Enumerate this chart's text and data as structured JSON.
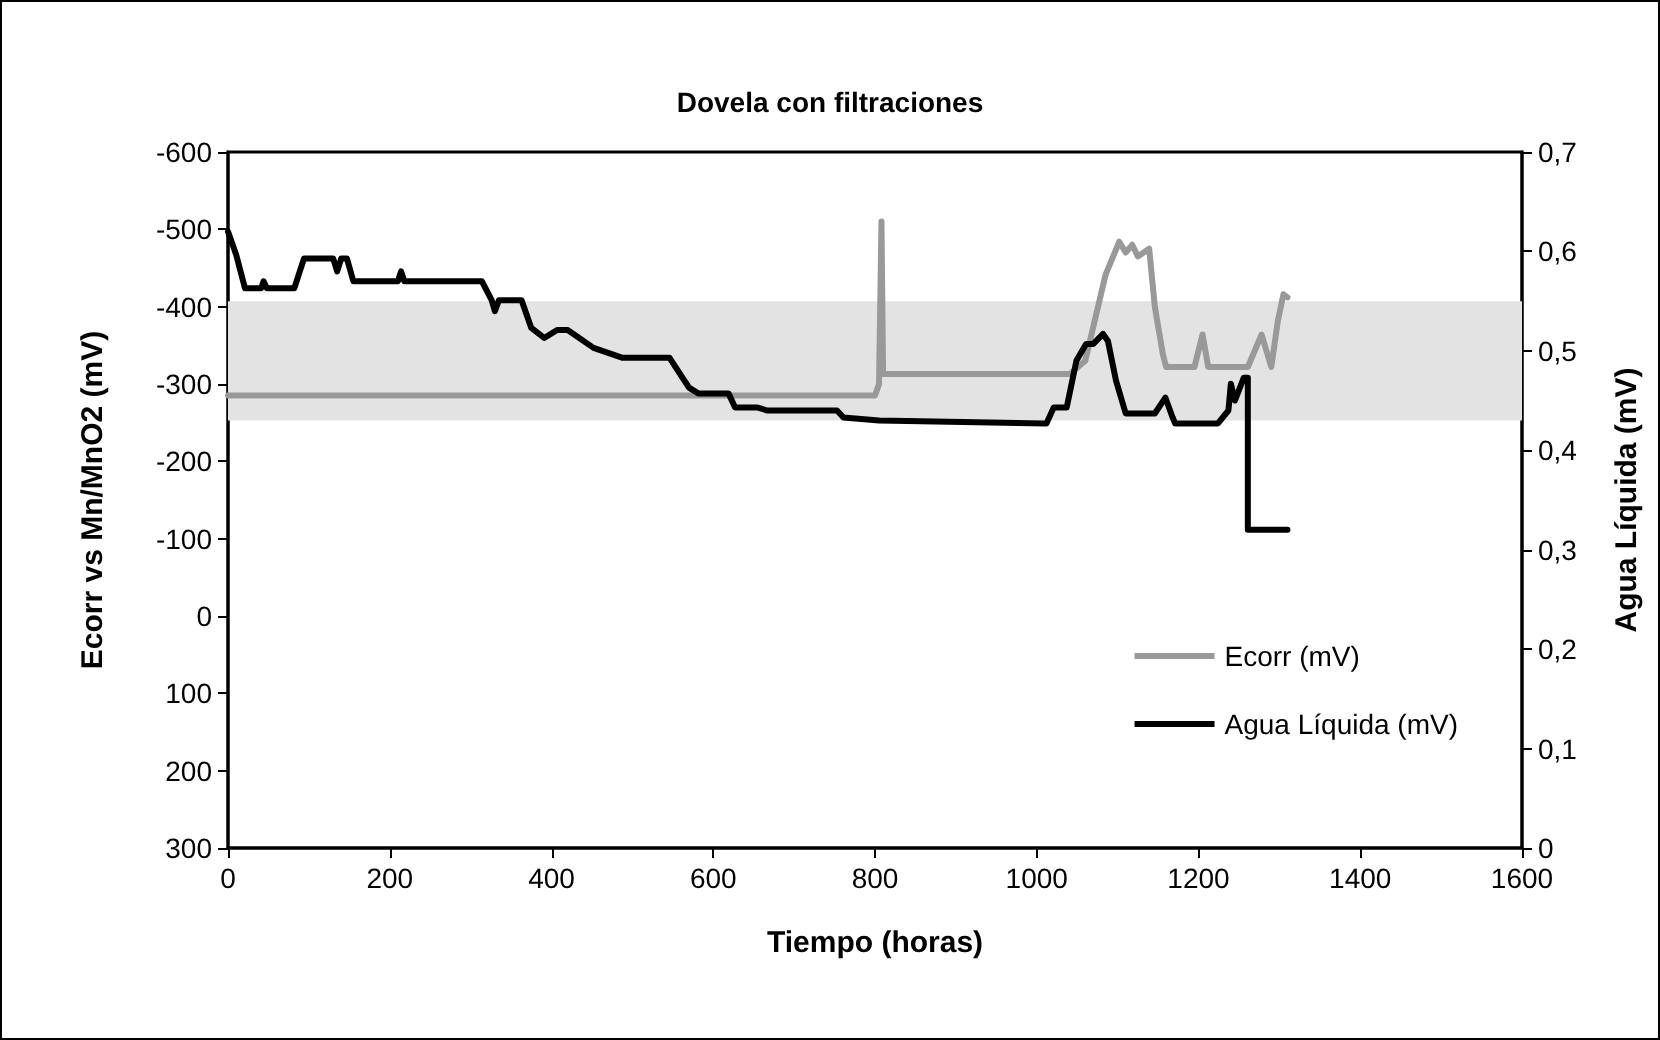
{
  "chart_data": {
    "type": "line",
    "title": "Dovela con filtraciones",
    "xlabel": "Tiempo (horas)",
    "ylabel": "Ecorr vs Mn/MnO2 (mV)",
    "y2label": "Agua Líquida (mV)",
    "xlim": [
      0,
      1600
    ],
    "xticks": [
      0,
      200,
      400,
      600,
      800,
      1000,
      1200,
      1400,
      1600
    ],
    "ylim": [
      300,
      -600
    ],
    "yticks": [
      -600,
      -500,
      -400,
      -300,
      -200,
      -100,
      0,
      100,
      200,
      300
    ],
    "y2lim": [
      0,
      0.7
    ],
    "y2ticks": [
      0,
      {
        "value": 0.1,
        "label": "0,1"
      },
      {
        "value": 0.2,
        "label": "0,2"
      },
      {
        "value": 0.3,
        "label": "0,3"
      },
      {
        "value": 0.4,
        "label": "0,4"
      },
      {
        "value": 0.5,
        "label": "0,5"
      },
      {
        "value": 0.6,
        "label": "0,6"
      },
      {
        "value": 0.7,
        "label": "0,7"
      }
    ],
    "grid": false,
    "legend": "bottom right",
    "marker": "none",
    "line_style": "solid",
    "bands": [
      {
        "axis": "y2",
        "from": 0.43,
        "to": 0.55,
        "color": "#e3e3e3"
      }
    ],
    "series": [
      {
        "name": "Ecorr (mV)",
        "color": "#999999",
        "x": [
          0,
          800,
          805,
          808,
          810,
          1041,
          1060,
          1085,
          1102,
          1110,
          1118,
          1125,
          1139,
          1146,
          1156,
          1160,
          1195,
          1205,
          1212,
          1261,
          1278,
          1290,
          1298,
          1305,
          1310
        ],
        "values": [
          -285,
          -285,
          -300,
          -510,
          -313,
          -313,
          -330,
          -441,
          -484,
          -470,
          -480,
          -465,
          -475,
          -400,
          -338,
          -322,
          -322,
          -364,
          -322,
          -322,
          -364,
          -322,
          -381,
          -416,
          -412
        ]
      },
      {
        "name": "Agua Líquida (mV)",
        "color": "#000000",
        "axis": "y2",
        "x": [
          0,
          10,
          21,
          41,
          44,
          48,
          82,
          94,
          130,
          135,
          140,
          147,
          155,
          210,
          214,
          218,
          314,
          326,
          330,
          335,
          363,
          375,
          391,
          407,
          420,
          452,
          488,
          546,
          570,
          582,
          619,
          627,
          655,
          667,
          753,
          761,
          805,
          1012,
          1021,
          1037,
          1049,
          1061,
          1070,
          1082,
          1088,
          1098,
          1110,
          1146,
          1159,
          1168,
          1171,
          1224,
          1237,
          1240,
          1245,
          1256,
          1261,
          1261,
          1310
        ],
        "values": [
          0.62,
          0.597,
          0.563,
          0.563,
          0.57,
          0.563,
          0.563,
          0.593,
          0.593,
          0.58,
          0.593,
          0.593,
          0.57,
          0.57,
          0.58,
          0.57,
          0.57,
          0.551,
          0.54,
          0.551,
          0.551,
          0.523,
          0.513,
          0.521,
          0.521,
          0.503,
          0.493,
          0.493,
          0.463,
          0.457,
          0.457,
          0.443,
          0.443,
          0.44,
          0.44,
          0.433,
          0.43,
          0.427,
          0.443,
          0.443,
          0.49,
          0.507,
          0.507,
          0.517,
          0.51,
          0.47,
          0.437,
          0.437,
          0.453,
          0.433,
          0.427,
          0.427,
          0.44,
          0.467,
          0.45,
          0.473,
          0.473,
          0.32,
          0.32
        ]
      }
    ]
  }
}
